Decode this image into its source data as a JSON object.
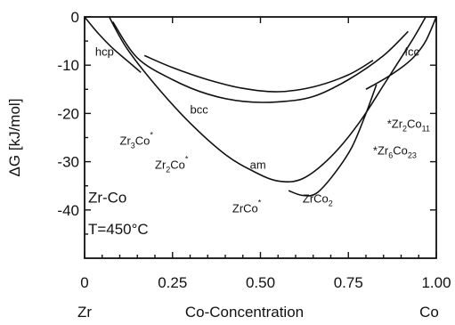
{
  "chart_data": {
    "type": "line",
    "title": "",
    "ylabel": "ΔG [kJ/mol]",
    "xlabel": "Co-Concentration",
    "x_end_labels": {
      "left": "Zr",
      "right": "Co"
    },
    "xlim": [
      0,
      1
    ],
    "ylim": [
      -50,
      0
    ],
    "x_ticks": [
      0,
      0.25,
      0.5,
      0.75,
      1.0
    ],
    "x_tick_labels": [
      "0",
      "0.25",
      "0.50",
      "0.75",
      "1.00"
    ],
    "y_ticks": [
      0,
      -10,
      -20,
      -30,
      -40
    ],
    "y_tick_labels": [
      "0",
      "-10",
      "-20",
      "-30",
      "-40"
    ],
    "system_label": "Zr-Co",
    "temperature_label": "T=450°C",
    "series": [
      {
        "name": "hcp",
        "points": [
          [
            0.0,
            0
          ],
          [
            0.04,
            -3.5
          ],
          [
            0.08,
            -6.5
          ],
          [
            0.12,
            -9
          ],
          [
            0.16,
            -11.5
          ]
        ]
      },
      {
        "name": "bcc",
        "points": [
          [
            0.08,
            -1
          ],
          [
            0.15,
            -8.5
          ],
          [
            0.25,
            -13
          ],
          [
            0.35,
            -16
          ],
          [
            0.45,
            -17.5
          ],
          [
            0.55,
            -17.6
          ],
          [
            0.65,
            -16.5
          ],
          [
            0.75,
            -13
          ],
          [
            0.85,
            -8
          ],
          [
            0.92,
            -3
          ]
        ]
      },
      {
        "name": "bcc-upper",
        "points": [
          [
            0.17,
            -8
          ],
          [
            0.25,
            -10.5
          ],
          [
            0.35,
            -13
          ],
          [
            0.45,
            -14.8
          ],
          [
            0.55,
            -15.5
          ],
          [
            0.65,
            -14.5
          ],
          [
            0.75,
            -12
          ],
          [
            0.82,
            -9
          ]
        ]
      },
      {
        "name": "am",
        "points": [
          [
            0.07,
            0
          ],
          [
            0.12,
            -6.5
          ],
          [
            0.2,
            -14
          ],
          [
            0.3,
            -22
          ],
          [
            0.4,
            -28.5
          ],
          [
            0.48,
            -32
          ],
          [
            0.55,
            -34
          ],
          [
            0.62,
            -33.5
          ],
          [
            0.7,
            -29
          ],
          [
            0.78,
            -22
          ],
          [
            0.86,
            -13
          ],
          [
            0.93,
            -5
          ],
          [
            0.97,
            0
          ]
        ]
      },
      {
        "name": "fcc",
        "points": [
          [
            0.8,
            -15
          ],
          [
            0.86,
            -12.5
          ],
          [
            0.91,
            -10
          ],
          [
            0.94,
            -8
          ],
          [
            0.97,
            -5
          ],
          [
            1.0,
            0
          ]
        ]
      },
      {
        "name": "ZrCo2",
        "points": [
          [
            0.58,
            -36
          ],
          [
            0.62,
            -37
          ],
          [
            0.66,
            -36.5
          ],
          [
            0.71,
            -32.5
          ],
          [
            0.76,
            -27
          ],
          [
            0.8,
            -20
          ],
          [
            0.83,
            -14
          ]
        ]
      }
    ],
    "annotations": [
      {
        "text": "hcp",
        "x": 0.03,
        "y": -8
      },
      {
        "text": "bcc",
        "x": 0.3,
        "y": -20
      },
      {
        "text": "fcc",
        "x": 0.91,
        "y": -8
      },
      {
        "text": "am",
        "x": 0.47,
        "y": -31.5
      },
      {
        "text": "Zr3Co*",
        "base": "Zr",
        "sub1": "3",
        "mid": "Co",
        "sup": "*",
        "x": 0.1,
        "y": -26.5,
        "marker": [
          0.26,
          -25.2
        ]
      },
      {
        "text": "Zr2Co*",
        "base": "Zr",
        "sub1": "2",
        "mid": "Co",
        "sup": "*",
        "x": 0.2,
        "y": -31.5,
        "marker": [
          0.34,
          -29.3
        ]
      },
      {
        "text": "ZrCo*",
        "base": "ZrCo",
        "sup": "*",
        "x": 0.42,
        "y": -40.5,
        "marker": [
          0.51,
          -38.8
        ]
      },
      {
        "text": "ZrCo2",
        "base": "ZrCo",
        "sub1": "2",
        "x": 0.62,
        "y": -38.5
      },
      {
        "text": "*Zr2Co11",
        "base": "Zr",
        "sub1": "2",
        "mid": "Co",
        "sub2": "11",
        "x": 0.86,
        "y": -23,
        "marker": [
          0.86,
          -21.5
        ]
      },
      {
        "text": "*Zr6Co23",
        "base": "Zr",
        "sub1": "6",
        "mid": "Co",
        "sub2": "23",
        "x": 0.82,
        "y": -28.5,
        "marker": [
          0.81,
          -26.6
        ]
      }
    ]
  }
}
